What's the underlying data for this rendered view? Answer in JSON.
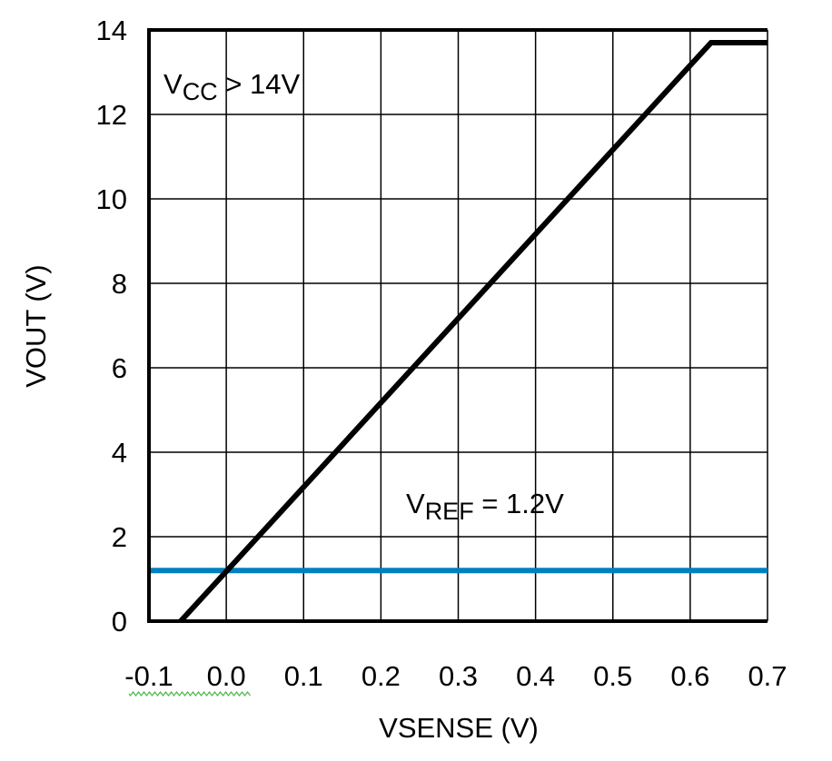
{
  "chart_data": {
    "type": "line",
    "xlabel": "VSENSE (V)",
    "ylabel": "VOUT (V)",
    "xlim": [
      -0.1,
      0.7
    ],
    "ylim": [
      0,
      14
    ],
    "xticks": [
      "-0.1",
      "0.0",
      "0.1",
      "0.2",
      "0.3",
      "0.4",
      "0.5",
      "0.6",
      "0.7"
    ],
    "xtick_values": [
      -0.1,
      0.0,
      0.1,
      0.2,
      0.3,
      0.4,
      0.5,
      0.6,
      0.7
    ],
    "yticks": [
      "0",
      "2",
      "4",
      "6",
      "8",
      "10",
      "12",
      "14"
    ],
    "ytick_values": [
      0,
      2,
      4,
      6,
      8,
      10,
      12,
      14
    ],
    "grid": true,
    "series": [
      {
        "color": "#000000",
        "x": [
          -0.059,
          0.627,
          0.7
        ],
        "y": [
          0,
          13.7,
          13.7
        ]
      },
      {
        "color": "#0080c0",
        "x": [
          -0.1,
          0.7
        ],
        "y": [
          1.2,
          1.2
        ]
      }
    ],
    "annotations": [
      {
        "main": "V",
        "sub": "CC",
        "rest": " > 14V"
      },
      {
        "main": "V",
        "sub": "REF",
        "rest": " = 1.2V"
      }
    ]
  }
}
